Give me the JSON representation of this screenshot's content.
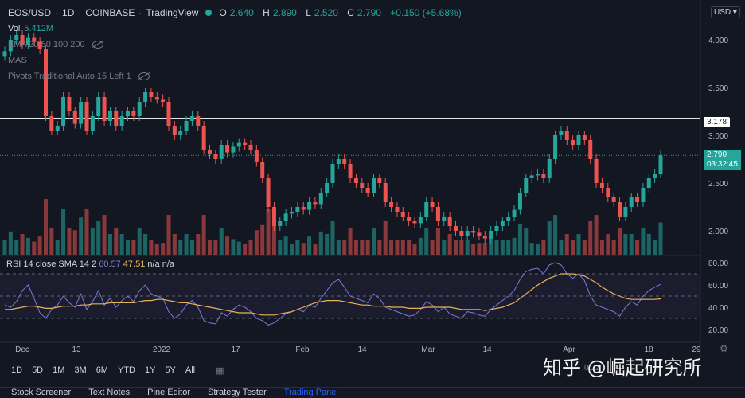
{
  "header": {
    "symbol": "EOS/USD",
    "interval": "1D",
    "exchange": "COINBASE",
    "provider": "TradingView",
    "open_label": "O",
    "open": "2.640",
    "high_label": "H",
    "high": "2.890",
    "low_label": "L",
    "low": "2.520",
    "close_label": "C",
    "close": "2.790",
    "change": "+0.150 (+5.68%)",
    "currency": "USD"
  },
  "indicators": {
    "vol_label": "Vol",
    "vol_value": "5.412M",
    "ema": "EMA 20 50 100 200",
    "mas": "MAS",
    "pivots": "Pivots Traditional Auto 15 Left 1"
  },
  "rsi": {
    "label": "RSI 14 close SMA 14 2",
    "value": "60.57",
    "sma": "47.51",
    "na": "n/a n/a"
  },
  "price_axis": {
    "ticks": [
      "4.000",
      "3.500",
      "3.000",
      "2.500",
      "2.000"
    ],
    "line_label": "3.178",
    "current": "2.790",
    "countdown": "03:32:45"
  },
  "rsi_axis": {
    "ticks": [
      "80.00",
      "60.00",
      "40.00",
      "20.00"
    ]
  },
  "time_axis": {
    "labels": [
      "Dec",
      "13",
      "2022",
      "17",
      "Feb",
      "14",
      "Mar",
      "14",
      "Apr",
      "18",
      "29"
    ]
  },
  "ranges": [
    "1D",
    "5D",
    "1M",
    "3M",
    "6M",
    "YTD",
    "1Y",
    "5Y",
    "All"
  ],
  "clock": "01:2",
  "watermark": "知乎 @崛起研究所",
  "tabs": [
    "Stock Screener",
    "Text Notes",
    "Pine Editor",
    "Strategy Tester",
    "Trading Panel"
  ],
  "colors": {
    "up": "#26a69a",
    "down": "#ef5350",
    "bg": "#131722",
    "sma": "#e5b25a",
    "rsi": "#7e7bd6"
  },
  "chart_data": {
    "type": "candlestick",
    "ylim": [
      1.75,
      4.25
    ],
    "horizontal_line": 3.178,
    "closes": [
      3.88,
      4.0,
      4.05,
      3.95,
      4.02,
      3.98,
      3.9,
      3.2,
      3.05,
      3.1,
      3.4,
      3.25,
      3.12,
      3.35,
      3.05,
      3.2,
      3.4,
      3.15,
      3.25,
      3.1,
      3.2,
      3.25,
      3.2,
      3.35,
      3.45,
      3.4,
      3.38,
      3.35,
      3.1,
      3.0,
      3.05,
      3.15,
      3.2,
      3.1,
      2.85,
      2.8,
      2.75,
      2.9,
      2.82,
      2.88,
      2.92,
      2.9,
      2.85,
      2.72,
      2.55,
      2.25,
      2.05,
      2.1,
      2.18,
      2.2,
      2.25,
      2.22,
      2.3,
      2.28,
      2.4,
      2.5,
      2.7,
      2.75,
      2.7,
      2.55,
      2.5,
      2.45,
      2.4,
      2.55,
      2.5,
      2.3,
      2.25,
      2.2,
      2.15,
      2.1,
      2.08,
      2.15,
      2.3,
      2.25,
      2.1,
      2.15,
      2.05,
      2.0,
      1.95,
      2.0,
      1.98,
      1.95,
      1.92,
      2.0,
      2.05,
      2.1,
      2.15,
      2.22,
      2.4,
      2.55,
      2.58,
      2.6,
      2.55,
      2.75,
      3.0,
      3.05,
      2.95,
      2.9,
      3.0,
      2.95,
      2.75,
      2.5,
      2.45,
      2.35,
      2.3,
      2.15,
      2.25,
      2.35,
      2.3,
      2.45,
      2.55,
      2.6,
      2.79
    ],
    "rsi": [
      42,
      40,
      45,
      55,
      60,
      48,
      35,
      30,
      38,
      42,
      50,
      44,
      40,
      52,
      38,
      45,
      55,
      42,
      48,
      40,
      46,
      50,
      45,
      55,
      60,
      52,
      50,
      48,
      36,
      30,
      34,
      42,
      46,
      40,
      28,
      26,
      25,
      35,
      32,
      38,
      42,
      40,
      36,
      30,
      28,
      24,
      26,
      30,
      34,
      36,
      38,
      36,
      42,
      40,
      48,
      55,
      62,
      65,
      58,
      50,
      48,
      46,
      44,
      52,
      48,
      40,
      38,
      36,
      34,
      32,
      33,
      38,
      45,
      42,
      36,
      40,
      34,
      32,
      30,
      36,
      35,
      33,
      32,
      38,
      42,
      46,
      50,
      55,
      65,
      72,
      74,
      75,
      70,
      78,
      80,
      78,
      70,
      66,
      70,
      64,
      50,
      42,
      40,
      38,
      36,
      32,
      40,
      45,
      42,
      50,
      55,
      58,
      60.57
    ],
    "rsi_sma": [
      38,
      38,
      39,
      40,
      41,
      41,
      40,
      39,
      39,
      40,
      41,
      41,
      41,
      42,
      42,
      43,
      43,
      43,
      44,
      44,
      44,
      44,
      44,
      45,
      46,
      46,
      47,
      47,
      46,
      45,
      44,
      44,
      43,
      42,
      41,
      40,
      39,
      38,
      37,
      36,
      35,
      35,
      35,
      34,
      33,
      33,
      33,
      34,
      35,
      36,
      38,
      40,
      42,
      44,
      45,
      46,
      46,
      46,
      45,
      44,
      43,
      42,
      42,
      41,
      41,
      41,
      40,
      40,
      40,
      39,
      39,
      39,
      40,
      40,
      40,
      40,
      40,
      39,
      38,
      38,
      38,
      38,
      37,
      38,
      39,
      40,
      42,
      44,
      48,
      52,
      56,
      60,
      63,
      66,
      68,
      70,
      70,
      70,
      69,
      68,
      65,
      62,
      58,
      55,
      52,
      50,
      48,
      47,
      47,
      47,
      47,
      47,
      47.51
    ],
    "rsi_ylim": [
      10,
      85
    ]
  }
}
